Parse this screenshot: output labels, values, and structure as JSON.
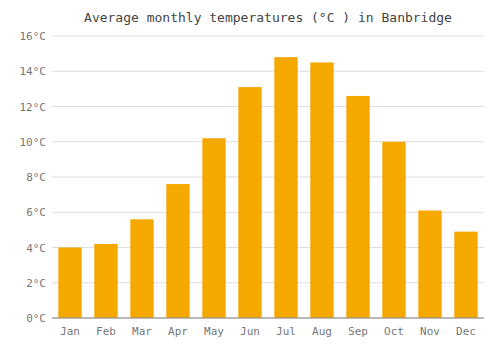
{
  "chart_data": {
    "type": "bar",
    "title": "Average monthly temperatures (°C ) in Banbridge",
    "categories": [
      "Jan",
      "Feb",
      "Mar",
      "Apr",
      "May",
      "Jun",
      "Jul",
      "Aug",
      "Sep",
      "Oct",
      "Nov",
      "Dec"
    ],
    "values": [
      4.0,
      4.2,
      5.6,
      7.6,
      10.2,
      13.1,
      14.8,
      14.5,
      12.6,
      10.0,
      6.1,
      4.9
    ],
    "color": "#F5A800",
    "ylim": [
      0,
      16
    ],
    "yticks": [
      {
        "value": 0,
        "label": "0°C"
      },
      {
        "value": 2,
        "label": "2°C"
      },
      {
        "value": 4,
        "label": "4°C"
      },
      {
        "value": 6,
        "label": "6°C"
      },
      {
        "value": 8,
        "label": "8°C"
      },
      {
        "value": 10,
        "label": "10°C"
      },
      {
        "value": 12,
        "label": "12°C"
      },
      {
        "value": 14,
        "label": "14°C"
      },
      {
        "value": 16,
        "label": "16°C"
      }
    ],
    "grid": true
  }
}
